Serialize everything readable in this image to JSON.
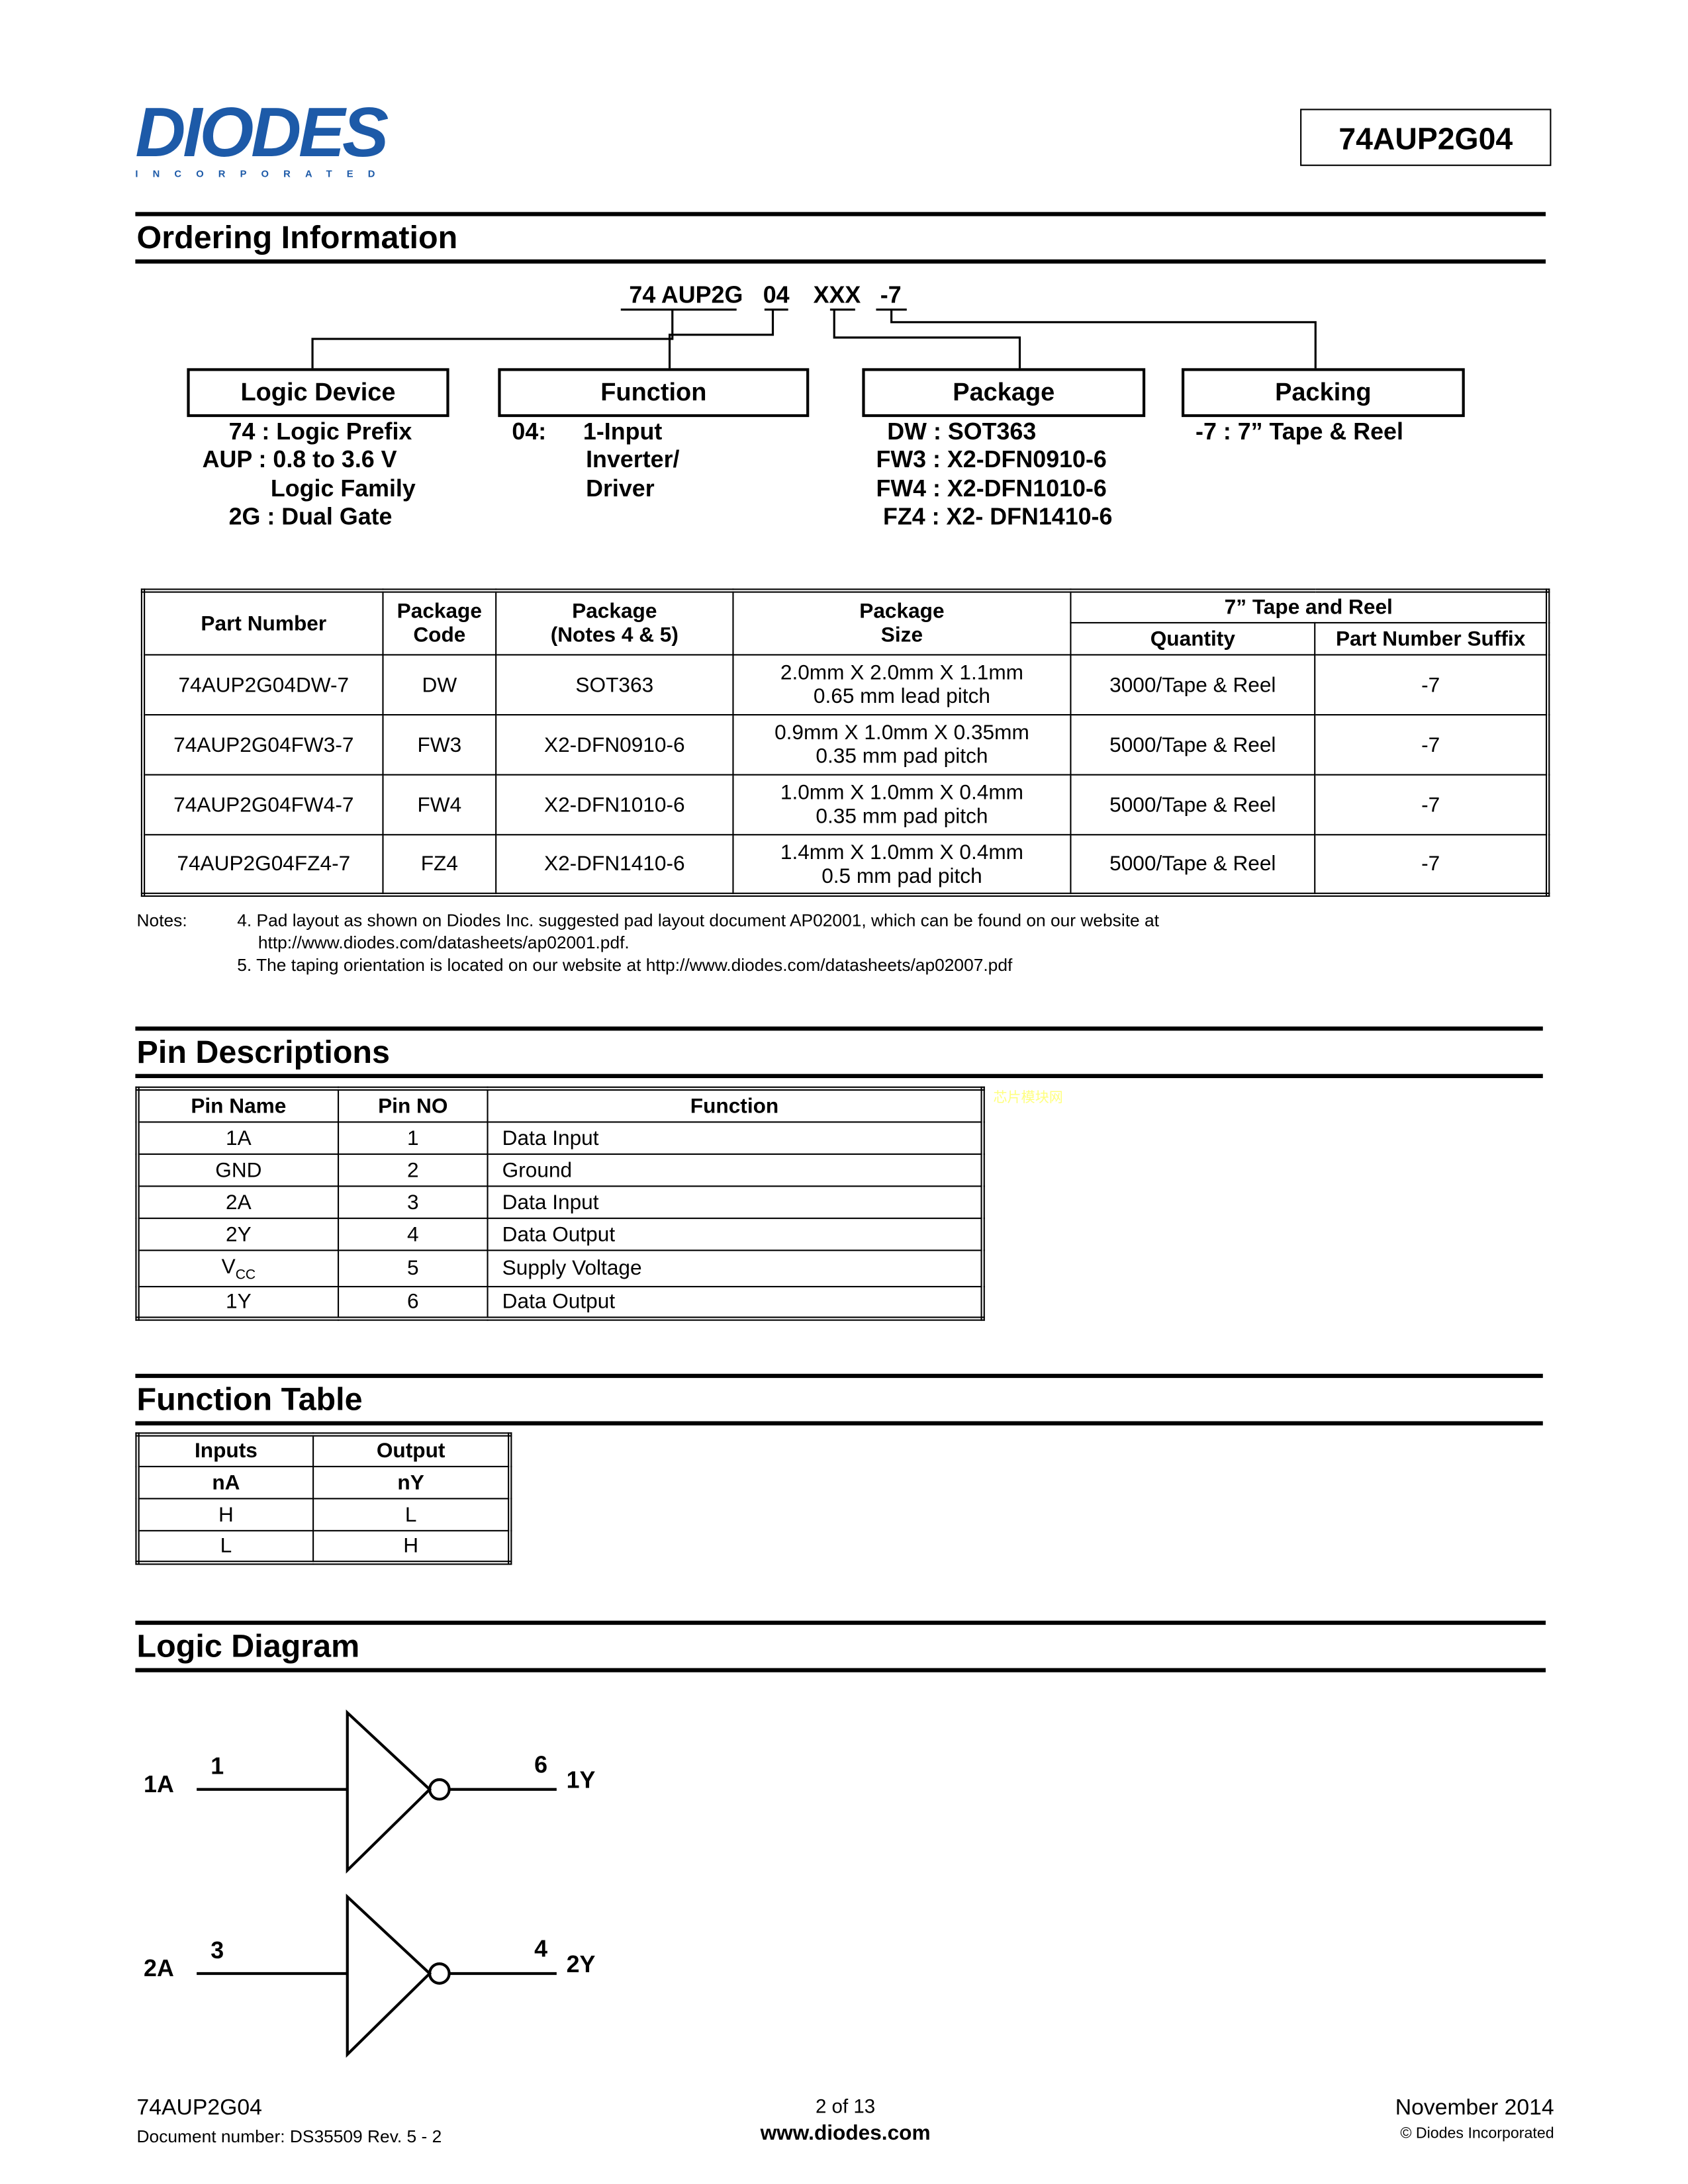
{
  "header": {
    "logo_text": "DIODES",
    "logo_sub": "INCORPORATED",
    "part_number": "74AUP2G04"
  },
  "ordering": {
    "title": "Ordering Information",
    "code": {
      "prefix": "74 AUP2G",
      "function": "04",
      "package": "XXX",
      "packing": "-7"
    },
    "boxes": [
      {
        "label": "Logic Device",
        "lines": [
          "74 : Logic Prefix",
          "AUP : 0.8 to 3.6 V",
          "Logic Family",
          "2G : Dual Gate"
        ]
      },
      {
        "label": "Function",
        "code": "04:",
        "lines": [
          "1-Input",
          "Inverter/",
          "Driver"
        ]
      },
      {
        "label": "Package",
        "lines": [
          "DW : SOT363",
          "FW3 : X2-DFN0910-6",
          "FW4 : X2-DFN1010-6",
          "FZ4 : X2- DFN1410-6"
        ]
      },
      {
        "label": "Packing",
        "lines": [
          "-7 : 7” Tape & Reel"
        ]
      }
    ],
    "table": {
      "headers": {
        "part_number": "Part Number",
        "package_code": [
          "Package",
          "Code"
        ],
        "package": [
          "Package",
          "(Notes 4 & 5)"
        ],
        "package_size": [
          "Package",
          "Size"
        ],
        "tape_reel": "7” Tape and Reel",
        "quantity": "Quantity",
        "suffix": "Part Number Suffix"
      },
      "rows": [
        {
          "part": "74AUP2G04DW-7",
          "code": "DW",
          "package": "SOT363",
          "size": [
            "2.0mm X 2.0mm X 1.1mm",
            "0.65 mm lead pitch"
          ],
          "qty": "3000/Tape & Reel",
          "suffix": "-7"
        },
        {
          "part": "74AUP2G04FW3-7",
          "code": "FW3",
          "package": "X2-DFN0910-6",
          "size": [
            "0.9mm X 1.0mm X 0.35mm",
            "0.35 mm pad pitch"
          ],
          "qty": "5000/Tape & Reel",
          "suffix": "-7"
        },
        {
          "part": "74AUP2G04FW4-7",
          "code": "FW4",
          "package": "X2-DFN1010-6",
          "size": [
            "1.0mm X 1.0mm X 0.4mm",
            "0.35 mm pad pitch"
          ],
          "qty": "5000/Tape & Reel",
          "suffix": "-7"
        },
        {
          "part": "74AUP2G04FZ4-7",
          "code": "FZ4",
          "package": "X2-DFN1410-6",
          "size": [
            "1.4mm X 1.0mm X 0.4mm",
            "0.5 mm pad pitch"
          ],
          "qty": "5000/Tape & Reel",
          "suffix": "-7"
        }
      ]
    },
    "notes": {
      "label": "Notes:",
      "items": [
        "4. Pad layout as shown on Diodes Inc. suggested pad layout document AP02001, which can be found on our website at",
        "http://www.diodes.com/datasheets/ap02001.pdf.",
        "5. The taping orientation is located on our website at http://www.diodes.com/datasheets/ap02007.pdf"
      ]
    }
  },
  "pins": {
    "title": "Pin Descriptions",
    "watermark": "芯片模块网",
    "headers": [
      "Pin Name",
      "Pin NO",
      "Function"
    ],
    "rows": [
      {
        "name": "1A",
        "no": "1",
        "fn": "Data Input"
      },
      {
        "name": "GND",
        "no": "2",
        "fn": "Ground"
      },
      {
        "name": "2A",
        "no": "3",
        "fn": "Data Input"
      },
      {
        "name": "2Y",
        "no": "4",
        "fn": "Data Output"
      },
      {
        "name": "V",
        "sub": "CC",
        "no": "5",
        "fn": "Supply Voltage"
      },
      {
        "name": "1Y",
        "no": "6",
        "fn": "Data Output"
      }
    ]
  },
  "function_table": {
    "title": "Function Table",
    "headers": [
      "Inputs",
      "Output"
    ],
    "subheaders": [
      "nA",
      "nY"
    ],
    "rows": [
      [
        "H",
        "L"
      ],
      [
        "L",
        "H"
      ]
    ]
  },
  "logic": {
    "title": "Logic Diagram",
    "gates": [
      {
        "in_label": "1A",
        "in_pin": "1",
        "out_pin": "6",
        "out_label": "1Y"
      },
      {
        "in_label": "2A",
        "in_pin": "3",
        "out_pin": "4",
        "out_label": "2Y"
      }
    ]
  },
  "footer": {
    "part": "74AUP2G04",
    "doc": "Document number: DS35509 Rev.  5 - 2",
    "page": "2 of 13",
    "url": "www.diodes.com",
    "date": "November 2014",
    "copyright": "© Diodes Incorporated"
  }
}
